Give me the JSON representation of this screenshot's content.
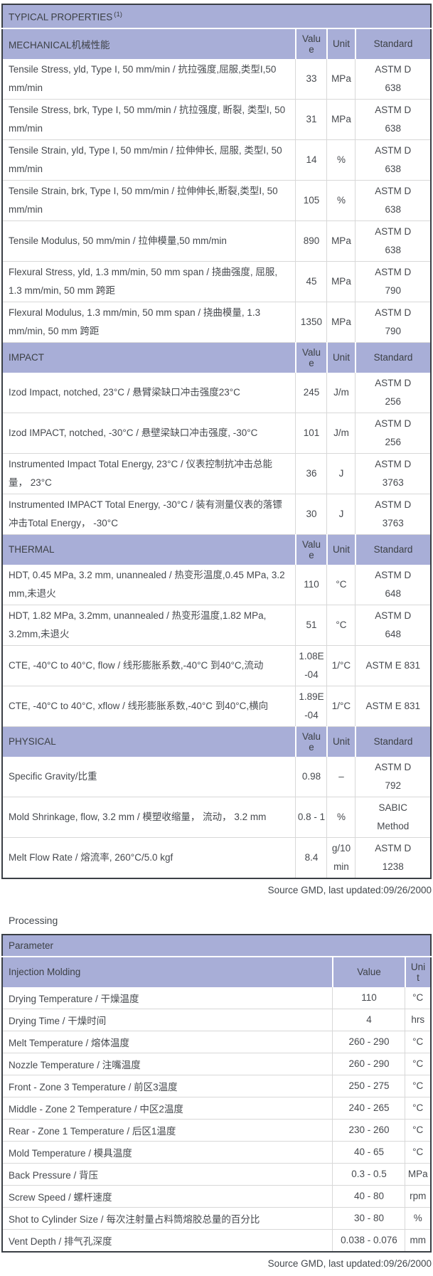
{
  "colors": {
    "header_bg": "#a8aed7",
    "table_border": "#3a3f45",
    "row_line": "#d8d8d8",
    "text": "#46494e"
  },
  "properties_table": {
    "title": "TYPICAL PROPERTIES",
    "title_superscript": "(1)",
    "columns": [
      "Value",
      "Unit",
      "Standard"
    ],
    "sections": [
      {
        "label": "MECHANICAL机械性能",
        "rows": [
          {
            "property": "Tensile Stress, yld, Type I, 50 mm/min / 抗拉强度,屈服,类型I,50 mm/min",
            "value": "33",
            "unit": "MPa",
            "standard": "ASTM D 638"
          },
          {
            "property": "Tensile Stress, brk, Type I, 50 mm/min / 抗拉强度, 断裂, 类型I, 50 mm/min",
            "value": "31",
            "unit": "MPa",
            "standard": "ASTM D 638"
          },
          {
            "property": "Tensile Strain, yld, Type I, 50 mm/min / 拉伸伸长, 屈服, 类型I, 50 mm/min",
            "value": "14",
            "unit": "%",
            "standard": "ASTM D 638"
          },
          {
            "property": "Tensile Strain, brk, Type I, 50 mm/min / 拉伸伸长,断裂,类型I, 50 mm/min",
            "value": "105",
            "unit": "%",
            "standard": "ASTM D 638"
          },
          {
            "property": "Tensile Modulus, 50 mm/min / 拉伸模量,50 mm/min",
            "value": "890",
            "unit": "MPa",
            "standard": "ASTM D 638"
          },
          {
            "property": "Flexural Stress, yld, 1.3 mm/min, 50 mm span / 挠曲强度, 屈服, 1.3 mm/min, 50 mm 跨距",
            "value": "45",
            "unit": "MPa",
            "standard": "ASTM D 790"
          },
          {
            "property": "Flexural Modulus, 1.3 mm/min, 50 mm span / 挠曲模量, 1.3 mm/min, 50 mm 跨距",
            "value": "1350",
            "unit": "MPa",
            "standard": "ASTM D 790"
          }
        ]
      },
      {
        "label": "IMPACT",
        "rows": [
          {
            "property": "Izod Impact, notched, 23°C / 悬臂梁缺口冲击强度23°C",
            "value": "245",
            "unit": "J/m",
            "standard": "ASTM D 256"
          },
          {
            "property": "Izod IMPACT, notched, -30°C / 悬壁梁缺口冲击强度, -30°C",
            "value": "101",
            "unit": "J/m",
            "standard": "ASTM D 256"
          },
          {
            "property": "Instrumented Impact Total Energy, 23°C / 仪表控制抗冲击总能量， 23°C",
            "value": "36",
            "unit": "J",
            "standard": "ASTM D 3763"
          },
          {
            "property": "Instrumented IMPACT Total Energy, -30°C / 装有测量仪表的落镖冲击Total Energy， -30°C",
            "value": "30",
            "unit": "J",
            "standard": "ASTM D 3763"
          }
        ]
      },
      {
        "label": "THERMAL",
        "rows": [
          {
            "property": "HDT, 0.45 MPa, 3.2 mm, unannealed / 热变形温度,0.45 MPa, 3.2 mm,未退火",
            "value": "110",
            "unit": "°C",
            "standard": "ASTM D 648"
          },
          {
            "property": "HDT, 1.82 MPa, 3.2mm, unannealed / 热变形温度,1.82 MPa, 3.2mm,未退火",
            "value": "51",
            "unit": "°C",
            "standard": "ASTM D 648"
          },
          {
            "property": "CTE, -40°C to 40°C, flow / 线形膨胀系数,-40°C 到40°C,流动",
            "value": "1.08E-04",
            "unit": "1/°C",
            "standard": "ASTM E 831"
          },
          {
            "property": "CTE, -40°C to 40°C, xflow / 线形膨胀系数,-40°C 到40°C,横向",
            "value": "1.89E-04",
            "unit": "1/°C",
            "standard": "ASTM E 831"
          }
        ]
      },
      {
        "label": "PHYSICAL",
        "rows": [
          {
            "property": "Specific Gravity/比重",
            "value": "0.98",
            "unit": "–",
            "standard": "ASTM D 792"
          },
          {
            "property": "Mold Shrinkage, flow, 3.2 mm / 模塑收缩量， 流动， 3.2 mm",
            "value": "0.8 - 1",
            "unit": "%",
            "standard": "SABIC Method"
          },
          {
            "property": "Melt Flow Rate / 熔流率, 260°C/5.0 kgf",
            "value": "8.4",
            "unit": "g/10 min",
            "standard": "ASTM D 1238"
          }
        ]
      }
    ],
    "source_note": "Source GMD, last updated:09/26/2000"
  },
  "processing": {
    "heading": "Processing",
    "table_title": "Parameter",
    "subheader_label": "Injection Molding",
    "columns": [
      "Value",
      "Unit"
    ],
    "rows": [
      {
        "parameter": "Drying Temperature / 干燥温度",
        "value": "110",
        "unit": "°C"
      },
      {
        "parameter": "Drying Time / 干燥时间",
        "value": "4",
        "unit": "hrs"
      },
      {
        "parameter": "Melt Temperature / 熔体温度",
        "value": "260 - 290",
        "unit": "°C"
      },
      {
        "parameter": "Nozzle Temperature / 注嘴温度",
        "value": "260 - 290",
        "unit": "°C"
      },
      {
        "parameter": "Front - Zone 3 Temperature / 前区3温度",
        "value": "250 - 275",
        "unit": "°C"
      },
      {
        "parameter": "Middle - Zone 2 Temperature / 中区2温度",
        "value": "240 - 265",
        "unit": "°C"
      },
      {
        "parameter": "Rear - Zone 1 Temperature / 后区1温度",
        "value": "230 - 260",
        "unit": "°C"
      },
      {
        "parameter": "Mold Temperature / 模具温度",
        "value": "40 - 65",
        "unit": "°C"
      },
      {
        "parameter": "Back Pressure / 背压",
        "value": "0.3 - 0.5",
        "unit": "MPa"
      },
      {
        "parameter": "Screw Speed / 螺杆速度",
        "value": "40 - 80",
        "unit": "rpm"
      },
      {
        "parameter": "Shot to Cylinder Size / 每次注射量占料筒熔胶总量的百分比",
        "value": "30 - 80",
        "unit": "%"
      },
      {
        "parameter": "Vent Depth / 排气孔深度",
        "value": "0.038 - 0.076",
        "unit": "mm"
      }
    ],
    "source_note": "Source GMD, last updated:09/26/2000"
  }
}
